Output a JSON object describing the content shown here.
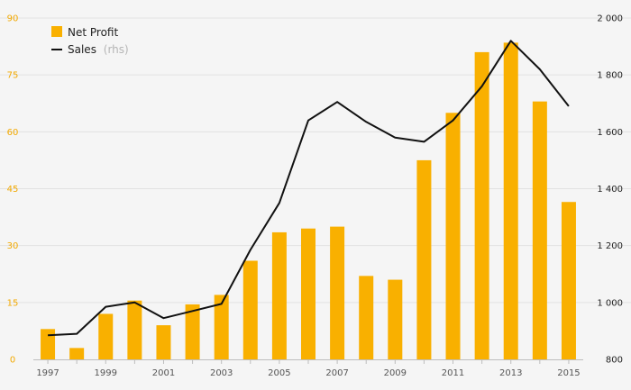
{
  "colors": {
    "bar": "#f9b000",
    "line": "#111111",
    "grid": "#e2e2e2",
    "left_axis_text": "#f2a900"
  },
  "chart_data": {
    "type": "bar",
    "categories": [
      "1997",
      "1998",
      "1999",
      "2000",
      "2001",
      "2002",
      "2003",
      "2004",
      "2005",
      "2006",
      "2007",
      "2008",
      "2009",
      "2010",
      "2011",
      "2012",
      "2013",
      "2014",
      "2015"
    ],
    "x_tick_labels": [
      "1997",
      "1999",
      "2001",
      "2003",
      "2005",
      "2007",
      "2009",
      "2011",
      "2013",
      "2015"
    ],
    "series": [
      {
        "name": "Net Profit",
        "type": "bar",
        "axis": "left",
        "values": [
          8,
          3,
          12,
          15.5,
          9,
          14.5,
          17,
          26,
          33.5,
          34.5,
          35,
          22,
          21,
          52.5,
          65,
          81,
          83.5,
          68,
          41.5
        ]
      },
      {
        "name": "Sales",
        "name_suffix": "(rhs)",
        "type": "line",
        "axis": "right",
        "values": [
          885,
          890,
          985,
          1000,
          945,
          970,
          995,
          1185,
          1350,
          1640,
          1705,
          1635,
          1580,
          1565,
          1640,
          1760,
          1920,
          1820,
          1690
        ]
      }
    ],
    "y_left": {
      "ticks": [
        "0",
        "15",
        "30",
        "45",
        "60",
        "75",
        "90"
      ],
      "ylim": [
        0,
        90
      ]
    },
    "y_right": {
      "ticks": [
        "800",
        "1 000",
        "1 200",
        "1 400",
        "1 600",
        "1 800",
        "2 000"
      ],
      "ylim": [
        800,
        2000
      ]
    },
    "legend_position": "top-left",
    "grid": true
  }
}
